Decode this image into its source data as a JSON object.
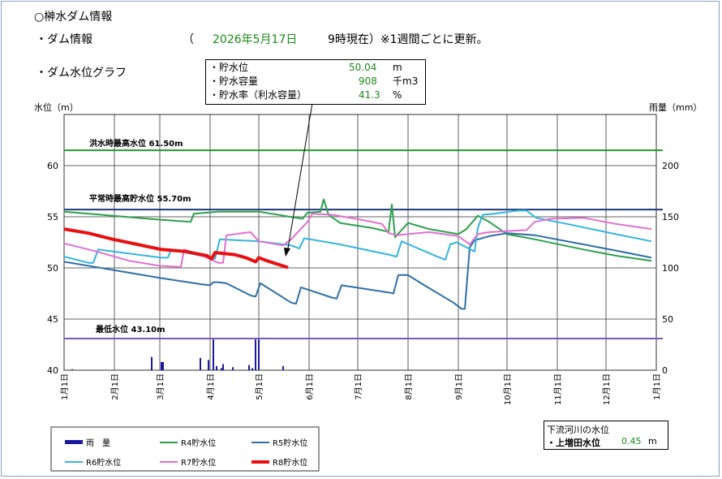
{
  "header": {
    "title": "○榊水ダム情報",
    "info_label": "・ダム情報",
    "date_open": "（",
    "date": "2026年5月17日",
    "time": "9時現在）※1週間ごとに更新。",
    "graph_label": "・ダム水位グラフ"
  },
  "infobox": {
    "rows": [
      {
        "label": "・貯水位",
        "value": "50.04",
        "unit": "m"
      },
      {
        "label": "・貯水容量",
        "value": "908",
        "unit": "千m3"
      },
      {
        "label": "・貯水率（利水容量）",
        "value": "41.3",
        "unit": "%"
      }
    ]
  },
  "river": {
    "title": "下流河川の水位",
    "label": "・上増田水位",
    "value": "0.45",
    "unit": "m"
  },
  "chart_data": {
    "type": "line",
    "ylabel_left": "水位（m）",
    "ylabel_right": "雨量（mm）",
    "ylim_left": [
      40,
      65
    ],
    "ylim_right": [
      0,
      250
    ],
    "yticks_left": [
      40,
      45,
      50,
      55,
      60
    ],
    "yticks_right": [
      0,
      50,
      100,
      150,
      200
    ],
    "xticks": [
      "1月1日",
      "2月1日",
      "3月1日",
      "4月1日",
      "5月1日",
      "6月1日",
      "7月1日",
      "8月1日",
      "9月1日",
      "10月1日",
      "11月1日",
      "12月1日",
      "1月1日"
    ],
    "xtick_day": [
      0,
      31,
      59,
      90,
      120,
      151,
      181,
      212,
      243,
      273,
      304,
      334,
      365
    ],
    "reference_lines": [
      {
        "label": "洪水時最高水位 61.50m",
        "value": 61.5,
        "color": "#1f9a2e"
      },
      {
        "label": "平常時最高貯水位 55.70m",
        "value": 55.7,
        "color": "#1f3a78"
      },
      {
        "label": "最低水位 43.10m",
        "value": 43.1,
        "color": "#7a5ab8"
      }
    ],
    "legend": [
      {
        "name": "雨　量",
        "color": "#1a1aa0"
      },
      {
        "name": "R4貯水位",
        "color": "#2ca04c"
      },
      {
        "name": "R5貯水位",
        "color": "#2e6fa8"
      },
      {
        "name": "R6貯水位",
        "color": "#33b5e0"
      },
      {
        "name": "R7貯水位",
        "color": "#e070d0"
      },
      {
        "name": "R8貯水位",
        "color": "#e81010"
      }
    ],
    "series": [
      {
        "name": "R4貯水位",
        "color": "#2ca04c",
        "width": 2,
        "points": [
          [
            0,
            55.5
          ],
          [
            30,
            55.1
          ],
          [
            60,
            54.7
          ],
          [
            78,
            54.5
          ],
          [
            80,
            55.3
          ],
          [
            95,
            55.5
          ],
          [
            120,
            55.5
          ],
          [
            147,
            54.8
          ],
          [
            150,
            55.4
          ],
          [
            158,
            55.5
          ],
          [
            160,
            56.7
          ],
          [
            163,
            55.2
          ],
          [
            170,
            54.4
          ],
          [
            190,
            53.9
          ],
          [
            198,
            53.6
          ],
          [
            200,
            53.5
          ],
          [
            202,
            56.2
          ],
          [
            204,
            53.0
          ],
          [
            212,
            54.4
          ],
          [
            225,
            53.8
          ],
          [
            243,
            53.3
          ],
          [
            248,
            53.8
          ],
          [
            255,
            55.1
          ],
          [
            262,
            54.5
          ],
          [
            273,
            53.3
          ],
          [
            290,
            52.8
          ],
          [
            320,
            51.8
          ],
          [
            340,
            51.2
          ],
          [
            362,
            50.7
          ]
        ]
      },
      {
        "name": "R5貯水位",
        "color": "#2e6fa8",
        "width": 2,
        "points": [
          [
            0,
            50.6
          ],
          [
            30,
            49.8
          ],
          [
            60,
            49.0
          ],
          [
            85,
            48.4
          ],
          [
            90,
            48.3
          ],
          [
            92,
            48.6
          ],
          [
            95,
            48.6
          ],
          [
            100,
            48.5
          ],
          [
            115,
            47.3
          ],
          [
            118,
            47.2
          ],
          [
            121,
            48.5
          ],
          [
            140,
            46.6
          ],
          [
            143,
            46.5
          ],
          [
            146,
            48.1
          ],
          [
            165,
            47.1
          ],
          [
            168,
            47.0
          ],
          [
            171,
            48.3
          ],
          [
            200,
            47.6
          ],
          [
            203,
            47.5
          ],
          [
            206,
            49.3
          ],
          [
            212,
            49.3
          ],
          [
            220,
            48.5
          ],
          [
            240,
            46.6
          ],
          [
            245,
            46.0
          ],
          [
            247,
            46.0
          ],
          [
            250,
            52.0
          ],
          [
            253,
            52.7
          ],
          [
            262,
            53.1
          ],
          [
            273,
            53.4
          ],
          [
            290,
            53.2
          ],
          [
            320,
            52.3
          ],
          [
            340,
            51.7
          ],
          [
            362,
            51.0
          ]
        ]
      },
      {
        "name": "R6貯水位",
        "color": "#33b5e0",
        "width": 2,
        "points": [
          [
            0,
            51.1
          ],
          [
            15,
            50.5
          ],
          [
            18,
            50.5
          ],
          [
            21,
            51.8
          ],
          [
            50,
            51.2
          ],
          [
            60,
            51.0
          ],
          [
            64,
            51.0
          ],
          [
            66,
            51.8
          ],
          [
            90,
            51.0
          ],
          [
            93,
            50.9
          ],
          [
            96,
            52.8
          ],
          [
            120,
            52.6
          ],
          [
            140,
            52.2
          ],
          [
            145,
            51.9
          ],
          [
            148,
            52.9
          ],
          [
            170,
            52.3
          ],
          [
            200,
            51.3
          ],
          [
            205,
            51.1
          ],
          [
            208,
            52.6
          ],
          [
            230,
            51.1
          ],
          [
            235,
            50.8
          ],
          [
            238,
            52.3
          ],
          [
            242,
            52.5
          ],
          [
            253,
            51.6
          ],
          [
            255,
            53.9
          ],
          [
            258,
            55.2
          ],
          [
            265,
            55.3
          ],
          [
            280,
            55.6
          ],
          [
            285,
            55.6
          ],
          [
            291,
            54.9
          ],
          [
            310,
            54.3
          ],
          [
            340,
            53.3
          ],
          [
            362,
            52.6
          ]
        ]
      },
      {
        "name": "R7貯水位",
        "color": "#e070d0",
        "width": 2,
        "points": [
          [
            0,
            52.4
          ],
          [
            20,
            51.6
          ],
          [
            40,
            50.7
          ],
          [
            59,
            50.2
          ],
          [
            72,
            50.1
          ],
          [
            74,
            51.8
          ],
          [
            85,
            51.2
          ],
          [
            95,
            50.5
          ],
          [
            98,
            50.5
          ],
          [
            100,
            53.2
          ],
          [
            115,
            53.5
          ],
          [
            120,
            52.6
          ],
          [
            135,
            52.2
          ],
          [
            140,
            52.8
          ],
          [
            150,
            54.5
          ],
          [
            153,
            55.3
          ],
          [
            165,
            55.2
          ],
          [
            180,
            54.8
          ],
          [
            196,
            54.3
          ],
          [
            200,
            53.4
          ],
          [
            205,
            53.2
          ],
          [
            225,
            53.5
          ],
          [
            243,
            53.1
          ],
          [
            250,
            52.3
          ],
          [
            255,
            53.3
          ],
          [
            262,
            53.5
          ],
          [
            273,
            53.6
          ],
          [
            285,
            53.7
          ],
          [
            290,
            54.5
          ],
          [
            300,
            54.8
          ],
          [
            320,
            54.9
          ],
          [
            340,
            54.3
          ],
          [
            362,
            53.8
          ]
        ]
      },
      {
        "name": "R8貯水位",
        "color": "#e81010",
        "width": 4,
        "points": [
          [
            0,
            53.8
          ],
          [
            15,
            53.4
          ],
          [
            30,
            52.8
          ],
          [
            45,
            52.3
          ],
          [
            60,
            51.8
          ],
          [
            75,
            51.6
          ],
          [
            88,
            51.2
          ],
          [
            91,
            50.9
          ],
          [
            93,
            51.5
          ],
          [
            105,
            51.3
          ],
          [
            112,
            51.0
          ],
          [
            118,
            50.6
          ],
          [
            120,
            51.0
          ],
          [
            125,
            50.7
          ],
          [
            138,
            50.04
          ]
        ]
      }
    ],
    "rainfall": [
      [
        5,
        1
      ],
      [
        54,
        13
      ],
      [
        60,
        8
      ],
      [
        61,
        8
      ],
      [
        84,
        12
      ],
      [
        89,
        10
      ],
      [
        92,
        30
      ],
      [
        94,
        4
      ],
      [
        97,
        2
      ],
      [
        98,
        6
      ],
      [
        104,
        3
      ],
      [
        114,
        5
      ],
      [
        116,
        2
      ],
      [
        118,
        30
      ],
      [
        120,
        30
      ],
      [
        135,
        4
      ]
    ]
  }
}
